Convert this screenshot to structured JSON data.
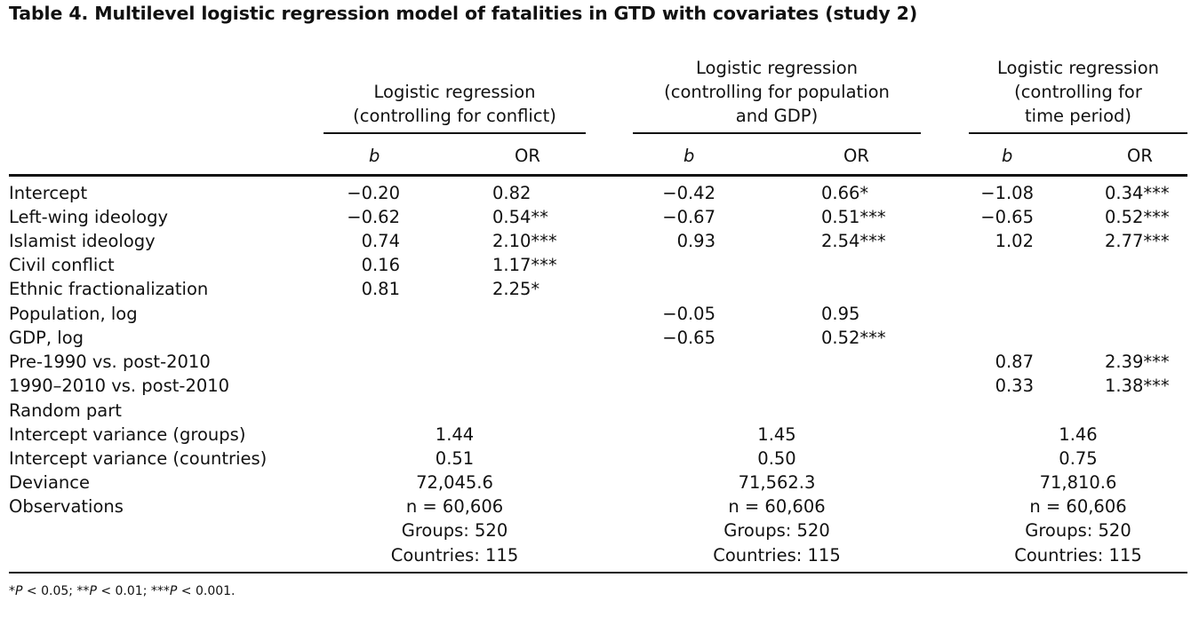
{
  "title": "Table 4. Multilevel logistic regression model of fatalities in GTD with covariates (study 2)",
  "groups": [
    {
      "line1": "Logistic regression",
      "line2": "(controlling for conflict)",
      "line3": ""
    },
    {
      "line1": "Logistic regression",
      "line2": "(controlling for population",
      "line3": "and GDP)"
    },
    {
      "line1": "Logistic regression",
      "line2": "(controlling for",
      "line3": "time period)"
    }
  ],
  "subheaders": {
    "b": "b",
    "or": "OR"
  },
  "rows": [
    {
      "label": "Intercept",
      "cells": [
        "−0.20",
        "0.82",
        "−0.42",
        "0.66*",
        "−1.08",
        "0.34***"
      ]
    },
    {
      "label": "Left-wing ideology",
      "cells": [
        "−0.62",
        "0.54**",
        "−0.67",
        "0.51***",
        "−0.65",
        "0.52***"
      ]
    },
    {
      "label": "Islamist ideology",
      "cells": [
        "0.74",
        "2.10***",
        "0.93",
        "2.54***",
        "1.02",
        "2.77***"
      ]
    },
    {
      "label": "Civil conflict",
      "cells": [
        "0.16",
        "1.17***",
        "",
        "",
        "",
        ""
      ]
    },
    {
      "label": "Ethnic fractionalization",
      "cells": [
        "0.81",
        "2.25*",
        "",
        "",
        "",
        ""
      ]
    },
    {
      "label": "Population, log",
      "cells": [
        "",
        "",
        "−0.05",
        "0.95",
        "",
        ""
      ]
    },
    {
      "label": "GDP, log",
      "cells": [
        "",
        "",
        "−0.65",
        "0.52***",
        "",
        ""
      ]
    },
    {
      "label": "Pre-1990 vs. post-2010",
      "cells": [
        "",
        "",
        "",
        "",
        "0.87",
        "2.39***"
      ]
    },
    {
      "label": "1990–2010 vs. post-2010",
      "cells": [
        "",
        "",
        "",
        "",
        "0.33",
        "1.38***"
      ]
    }
  ],
  "random_label": "Random part",
  "random_rows": [
    {
      "label": "Intercept variance (groups)",
      "cells": [
        "1.44",
        "1.45",
        "1.46"
      ]
    },
    {
      "label": "Intercept variance (countries)",
      "cells": [
        "0.51",
        "0.50",
        "0.75"
      ]
    },
    {
      "label": "Deviance",
      "cells": [
        "72,045.6",
        "71,562.3",
        "71,810.6"
      ]
    },
    {
      "label": "Observations",
      "cells": [
        "n = 60,606",
        "n = 60,606",
        "n = 60,606"
      ]
    },
    {
      "label": "",
      "cells": [
        "Groups: 520",
        "Groups: 520",
        "Groups: 520"
      ]
    },
    {
      "label": "",
      "cells": [
        "Countries: 115",
        "Countries: 115",
        "Countries: 115"
      ]
    }
  ],
  "footnote": "*P < 0.05; **P < 0.01; ***P < 0.001."
}
